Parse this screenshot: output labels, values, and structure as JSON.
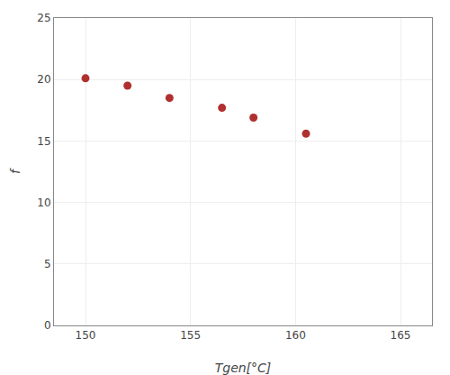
{
  "chart_data": {
    "type": "scatter",
    "x": [
      150,
      152,
      154,
      156.5,
      158,
      160.5
    ],
    "y": [
      20.1,
      19.5,
      18.5,
      17.7,
      16.9,
      15.6
    ],
    "color": "#b03030",
    "xlabel": "Tgen[°C]",
    "ylabel": "f",
    "xlim": [
      148.5,
      166.5
    ],
    "xticks": [
      150,
      155,
      160,
      165
    ],
    "ylim": [
      0,
      25
    ],
    "yticks": [
      0,
      5,
      10,
      15,
      20,
      25
    ],
    "grid": true
  }
}
